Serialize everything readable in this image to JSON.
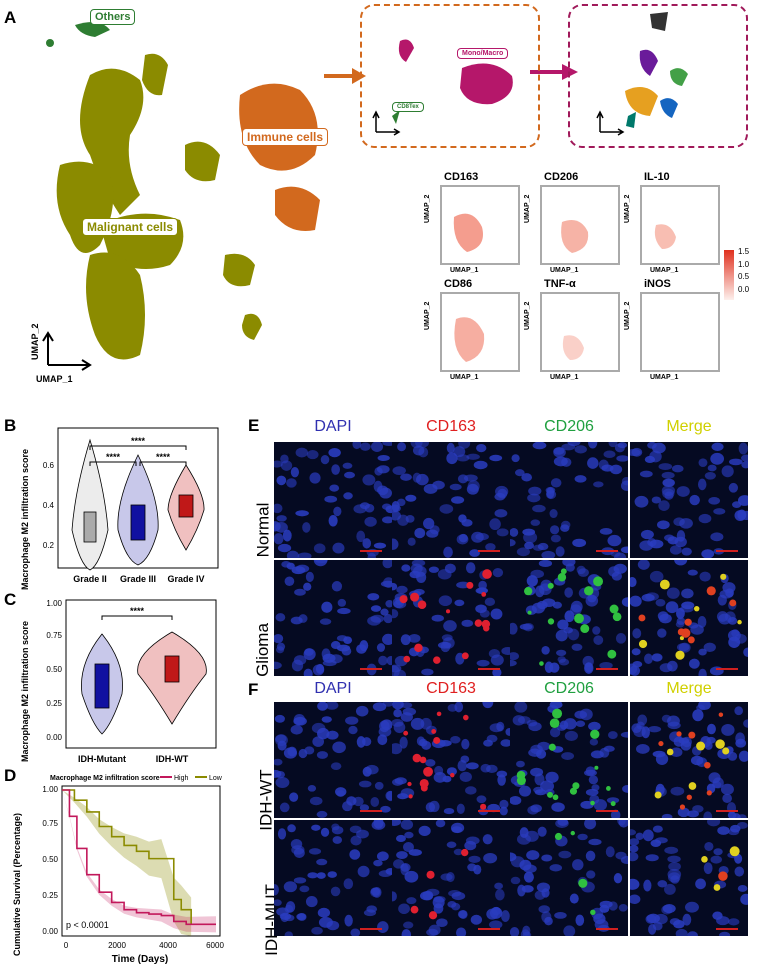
{
  "panels": {
    "A": "A",
    "B": "B",
    "C": "C",
    "D": "D",
    "E": "E",
    "F": "F"
  },
  "panelA": {
    "clusters": {
      "others": "Others",
      "immune": "Immune cells",
      "malignant": "Malignant cells",
      "mono": "Mono/Macro",
      "cd8": "CD8Tex"
    },
    "umap_x": "UMAP_1",
    "umap_y": "UMAP_2",
    "features": [
      "CD163",
      "CD206",
      "IL-10",
      "CD86",
      "TNF-α",
      "iNOS"
    ],
    "legend": [
      "1.5",
      "1.0",
      "0.5",
      "0.0"
    ],
    "colors": {
      "malignant": "#8b8b00",
      "immune": "#d2691e",
      "others": "#2e7d32",
      "mono": "#b5176a",
      "box1": "#d2691e",
      "box2": "#a0195a"
    }
  },
  "panelB": {
    "ylabel": "Macrophage M2 infiltration score",
    "yticks": [
      "0.2",
      "0.4",
      "0.6"
    ],
    "groups": [
      "Grade II",
      "Grade III",
      "Grade IV"
    ],
    "sig": [
      "****",
      "****",
      "****"
    ]
  },
  "panelC": {
    "ylabel": "Macrophage M2 infiltration score",
    "yticks": [
      "0.00",
      "0.25",
      "0.50",
      "0.75",
      "1.00"
    ],
    "groups": [
      "IDH-Mutant",
      "IDH-WT"
    ],
    "sig": "****"
  },
  "panelD": {
    "legend_title": "Macrophage M2 infiltration score",
    "legend_items": [
      "High",
      "Low"
    ],
    "ylabel": "Cumulative Survival (Percentage)",
    "xlabel": "Time (Days)",
    "yticks": [
      "0.00",
      "0.25",
      "0.50",
      "0.75",
      "1.00"
    ],
    "xticks": [
      "0",
      "2000",
      "4000",
      "6000"
    ],
    "pvalue": "p < 0.0001"
  },
  "panelE": {
    "channels": [
      "DAPI",
      "CD163",
      "CD206",
      "Merge"
    ],
    "rows": [
      "Normal",
      "Glioma"
    ]
  },
  "panelF": {
    "channels": [
      "DAPI",
      "CD163",
      "CD206",
      "Merge"
    ],
    "rows": [
      "IDH-WT",
      "IDH-MUT"
    ]
  },
  "chart_data": [
    {
      "type": "violin",
      "title": "",
      "ylabel": "Macrophage M2 infiltration score",
      "categories": [
        "Grade II",
        "Grade III",
        "Grade IV"
      ],
      "medians": [
        0.32,
        0.37,
        0.47
      ],
      "ylim": [
        0.15,
        0.8
      ]
    },
    {
      "type": "violin",
      "title": "",
      "ylabel": "Macrophage M2 infiltration score",
      "categories": [
        "IDH-Mutant",
        "IDH-WT"
      ],
      "medians": [
        0.35,
        0.46
      ],
      "ylim": [
        0,
        1
      ]
    },
    {
      "type": "line",
      "title": "",
      "xlabel": "Time (Days)",
      "ylabel": "Cumulative Survival (Percentage)",
      "series": [
        {
          "name": "High",
          "x": [
            0,
            300,
            600,
            1000,
            1500,
            2000,
            2500,
            3000,
            3500,
            4000,
            4500,
            5000,
            6200
          ],
          "y": [
            1.0,
            0.82,
            0.6,
            0.42,
            0.3,
            0.23,
            0.18,
            0.16,
            0.15,
            0.14,
            0.1,
            0.08,
            0.08
          ]
        },
        {
          "name": "Low",
          "x": [
            0,
            500,
            1000,
            1500,
            2000,
            2500,
            3000,
            3500,
            4000,
            4500,
            4800,
            5200
          ],
          "y": [
            1.0,
            0.93,
            0.85,
            0.75,
            0.68,
            0.62,
            0.58,
            0.53,
            0.53,
            0.25,
            0.18,
            0.08
          ]
        }
      ],
      "xlim": [
        0,
        6200
      ],
      "ylim": [
        0,
        1
      ]
    }
  ]
}
